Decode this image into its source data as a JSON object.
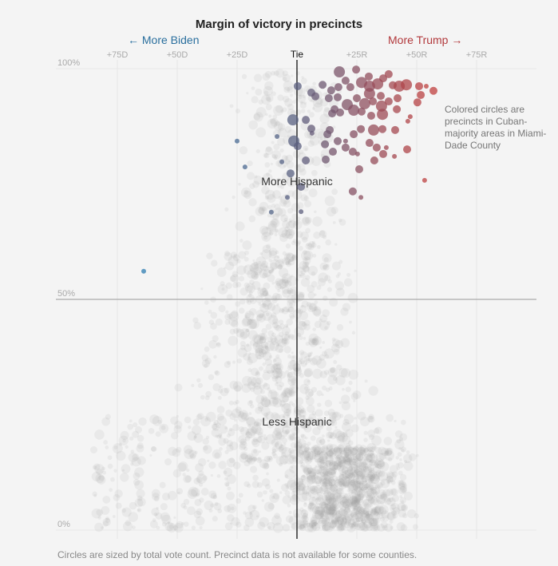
{
  "chart_data": {
    "type": "scatter",
    "title": "Margin of victory in precincts",
    "direction_labels": {
      "left": "← More Biden",
      "right": "More Trump →"
    },
    "x_ticks": [
      {
        "value": -75,
        "label": "+75D"
      },
      {
        "value": -50,
        "label": "+50D"
      },
      {
        "value": -25,
        "label": "+25D"
      },
      {
        "value": 0,
        "label": "Tie"
      },
      {
        "value": 25,
        "label": "+25R"
      },
      {
        "value": 50,
        "label": "+50R"
      },
      {
        "value": 75,
        "label": "+75R"
      }
    ],
    "y_ticks": [
      {
        "value": 100,
        "label": "100%"
      },
      {
        "value": 50,
        "label": "50%"
      },
      {
        "value": 0,
        "label": "0%"
      }
    ],
    "xlim": [
      -93,
      100
    ],
    "ylim": [
      0,
      100
    ],
    "annotations": {
      "top": "More Hispanic",
      "bottom": "Less Hispanic",
      "note": "Colored circles are precincts in Cuban-majority areas in Miami-Dade County"
    },
    "footnote": "Circles are sized by total vote count. Precinct data is not available for some counties.",
    "colors": {
      "biden": "#2e7db3",
      "tie": "#5b6080",
      "trump": "#c0403f",
      "background_dots": "#999999"
    },
    "highlighted_series": {
      "fields": [
        "margin",
        "hispanic_pct",
        "size"
      ],
      "points": [
        [
          17.7,
          99.3,
          3
        ],
        [
          24.7,
          99.8,
          2
        ],
        [
          0.3,
          96.2,
          2
        ],
        [
          6,
          94.8,
          2
        ],
        [
          7.7,
          94,
          2
        ],
        [
          10.7,
          96.5,
          2
        ],
        [
          14.3,
          95.3,
          2
        ],
        [
          13.3,
          93.6,
          2
        ],
        [
          17,
          93.8,
          2
        ],
        [
          17.3,
          96,
          2
        ],
        [
          20.3,
          97.4,
          2
        ],
        [
          22.3,
          96,
          2
        ],
        [
          21,
          92.2,
          3
        ],
        [
          27,
          97,
          3
        ],
        [
          30,
          98.3,
          2
        ],
        [
          30.3,
          96.2,
          3
        ],
        [
          33.7,
          96.7,
          3
        ],
        [
          36,
          97.9,
          2
        ],
        [
          38.3,
          98.8,
          2
        ],
        [
          40,
          96.4,
          2
        ],
        [
          42.7,
          96.2,
          3
        ],
        [
          45.7,
          96.5,
          3
        ],
        [
          51,
          96.2,
          2
        ],
        [
          54,
          96.2,
          1
        ],
        [
          57,
          95.2,
          2
        ],
        [
          50.3,
          92.7,
          2
        ],
        [
          51.7,
          94.3,
          2
        ],
        [
          47.3,
          89.6,
          1
        ],
        [
          46,
          82.5,
          2
        ],
        [
          53.3,
          75.8,
          1
        ],
        [
          35.7,
          90.1,
          3
        ],
        [
          35.3,
          91.9,
          3
        ],
        [
          38.3,
          92.9,
          2
        ],
        [
          41.7,
          91.2,
          2
        ],
        [
          42,
          93.6,
          2
        ],
        [
          25,
          93.6,
          2
        ],
        [
          28.3,
          92.4,
          3
        ],
        [
          31.7,
          92.9,
          2
        ],
        [
          35,
          94.1,
          2
        ],
        [
          30.3,
          94.6,
          3
        ],
        [
          27,
          90.7,
          2
        ],
        [
          31,
          89.8,
          2
        ],
        [
          23.7,
          91,
          3
        ],
        [
          26.7,
          86.9,
          2
        ],
        [
          23.7,
          85.8,
          2
        ],
        [
          32,
          86.7,
          3
        ],
        [
          35.7,
          86.9,
          2
        ],
        [
          41,
          86.7,
          2
        ],
        [
          30.3,
          83.9,
          2
        ],
        [
          33.3,
          82.9,
          2
        ],
        [
          36,
          81.5,
          2
        ],
        [
          37.3,
          82.9,
          1
        ],
        [
          32.3,
          80.1,
          2
        ],
        [
          26,
          78.2,
          2
        ],
        [
          20.3,
          82.9,
          2
        ],
        [
          23.3,
          82,
          2
        ],
        [
          25.3,
          81.5,
          1
        ],
        [
          23.3,
          73.4,
          2
        ],
        [
          26.7,
          72.1,
          1
        ],
        [
          20.3,
          84.3,
          1
        ],
        [
          17,
          84.3,
          2
        ],
        [
          15,
          82,
          2
        ],
        [
          11.7,
          83.6,
          2
        ],
        [
          12,
          80.3,
          2
        ],
        [
          13.7,
          86.7,
          2
        ],
        [
          12.7,
          85.8,
          2
        ],
        [
          15.7,
          91.2,
          2
        ],
        [
          18,
          90.5,
          2
        ],
        [
          14.7,
          90.3,
          2
        ],
        [
          6,
          87,
          2
        ],
        [
          3.7,
          88.9,
          2
        ],
        [
          6.3,
          86,
          1
        ],
        [
          3.7,
          80.1,
          2
        ],
        [
          -1.7,
          88.9,
          3
        ],
        [
          -1.3,
          84.3,
          3
        ],
        [
          0.3,
          83.2,
          2
        ],
        [
          -6.3,
          79.8,
          1
        ],
        [
          -2.7,
          77.3,
          2
        ],
        [
          1.7,
          74.4,
          2
        ],
        [
          -4,
          72.1,
          1
        ],
        [
          -10.7,
          68.9,
          1
        ],
        [
          1.7,
          69,
          1
        ],
        [
          -8.3,
          85.3,
          1
        ],
        [
          -21.7,
          78.7,
          1
        ],
        [
          -25,
          84.3,
          1
        ],
        [
          40.7,
          81,
          1
        ],
        [
          46.3,
          88.6,
          1
        ],
        [
          -64,
          56.1,
          1
        ]
      ]
    }
  }
}
